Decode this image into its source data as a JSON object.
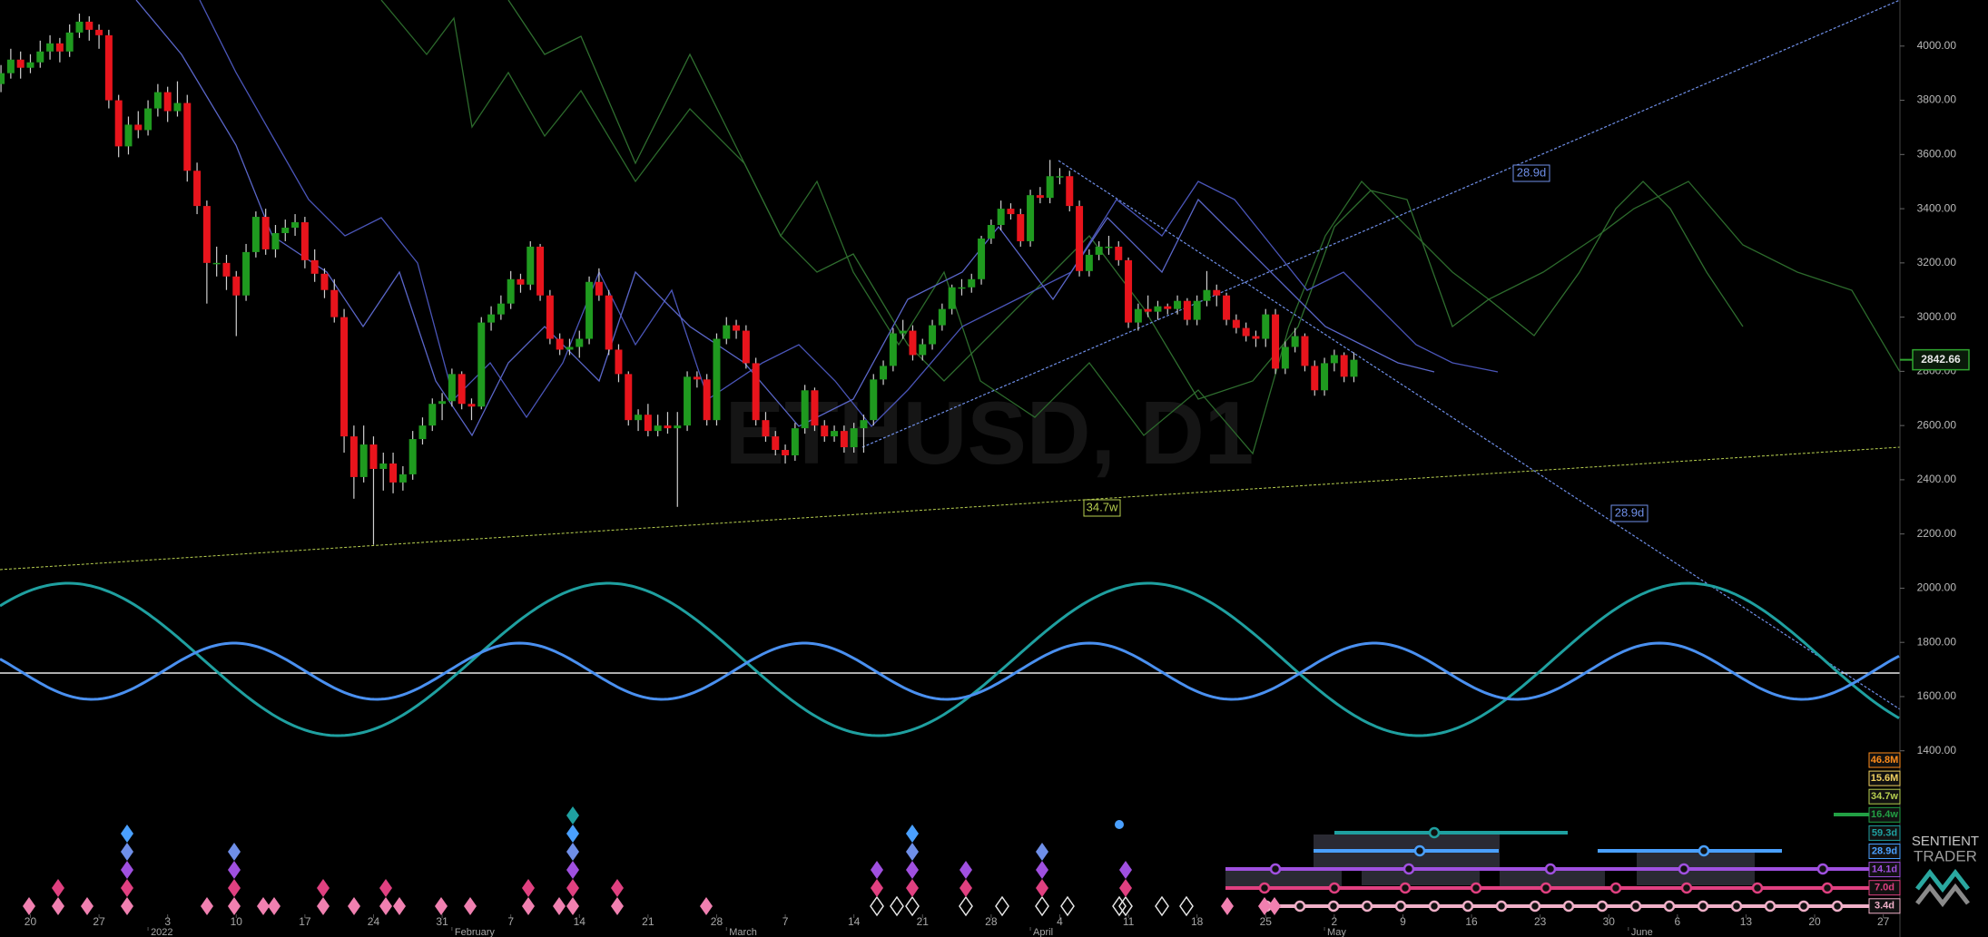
{
  "chart_data": {
    "type": "candlestick",
    "title": "ETHUSD, D1",
    "up_color": "#1f9a1f",
    "down_color": "#e8141c",
    "x": [
      -3,
      -2,
      -1,
      0,
      1,
      2,
      3,
      4,
      5,
      6,
      7,
      8,
      9,
      10,
      11,
      12,
      13,
      14,
      15,
      16,
      17,
      18,
      19,
      20,
      21,
      22,
      23,
      24,
      25,
      26,
      27,
      28,
      29,
      30,
      31,
      32,
      33,
      34,
      35,
      36,
      37,
      38,
      39,
      40,
      41,
      42,
      43,
      44,
      45,
      46,
      47,
      48,
      49,
      50,
      51,
      52,
      53,
      54,
      55,
      56,
      57,
      58,
      59,
      60,
      61,
      62,
      63,
      64,
      65,
      66,
      67,
      68,
      69,
      70,
      71,
      72,
      73,
      74,
      75,
      76,
      77,
      78,
      79,
      80,
      81,
      82,
      83,
      84,
      85,
      86,
      87,
      88,
      89,
      90,
      91,
      92,
      93,
      94,
      95,
      96,
      97,
      98,
      99,
      100,
      101,
      102,
      103,
      104,
      105,
      106,
      107,
      108,
      109,
      110,
      111,
      112,
      113,
      114,
      115,
      116,
      117,
      118,
      119,
      120,
      121,
      122,
      123,
      124,
      125,
      126,
      127,
      128,
      129,
      130,
      131,
      132,
      133,
      134,
      135
    ],
    "candles": [
      [
        3860,
        3930,
        3830,
        3900
      ],
      [
        3900,
        3990,
        3880,
        3950
      ],
      [
        3950,
        3980,
        3880,
        3920
      ],
      [
        3920,
        3970,
        3900,
        3940
      ],
      [
        3940,
        4020,
        3920,
        3980
      ],
      [
        3980,
        4040,
        3950,
        4010
      ],
      [
        4010,
        4030,
        3940,
        3980
      ],
      [
        3980,
        4080,
        3960,
        4050
      ],
      [
        4050,
        4120,
        4030,
        4090
      ],
      [
        4090,
        4110,
        4020,
        4060
      ],
      [
        4060,
        4080,
        3990,
        4040
      ],
      [
        4040,
        4060,
        3770,
        3800
      ],
      [
        3800,
        3820,
        3590,
        3630
      ],
      [
        3630,
        3740,
        3600,
        3710
      ],
      [
        3710,
        3760,
        3660,
        3690
      ],
      [
        3690,
        3800,
        3670,
        3770
      ],
      [
        3770,
        3860,
        3740,
        3830
      ],
      [
        3830,
        3850,
        3720,
        3760
      ],
      [
        3760,
        3870,
        3740,
        3790
      ],
      [
        3790,
        3820,
        3500,
        3540
      ],
      [
        3540,
        3570,
        3380,
        3410
      ],
      [
        3410,
        3430,
        3050,
        3200
      ],
      [
        3200,
        3260,
        3150,
        3200
      ],
      [
        3200,
        3230,
        3100,
        3150
      ],
      [
        3150,
        3170,
        2930,
        3080
      ],
      [
        3080,
        3270,
        3060,
        3240
      ],
      [
        3240,
        3390,
        3220,
        3370
      ],
      [
        3370,
        3400,
        3230,
        3250
      ],
      [
        3250,
        3340,
        3220,
        3310
      ],
      [
        3310,
        3360,
        3280,
        3330
      ],
      [
        3330,
        3380,
        3300,
        3350
      ],
      [
        3350,
        3370,
        3180,
        3210
      ],
      [
        3210,
        3250,
        3130,
        3160
      ],
      [
        3160,
        3180,
        3070,
        3100
      ],
      [
        3100,
        3140,
        2980,
        3000
      ],
      [
        3000,
        3030,
        2500,
        2560
      ],
      [
        2560,
        2600,
        2330,
        2410
      ],
      [
        2410,
        2600,
        2390,
        2530
      ],
      [
        2530,
        2560,
        2160,
        2440
      ],
      [
        2440,
        2500,
        2360,
        2460
      ],
      [
        2460,
        2500,
        2350,
        2390
      ],
      [
        2390,
        2450,
        2360,
        2420
      ],
      [
        2420,
        2580,
        2400,
        2550
      ],
      [
        2550,
        2630,
        2530,
        2600
      ],
      [
        2600,
        2700,
        2580,
        2680
      ],
      [
        2680,
        2720,
        2620,
        2690
      ],
      [
        2690,
        2810,
        2670,
        2790
      ],
      [
        2790,
        2800,
        2660,
        2680
      ],
      [
        2680,
        2700,
        2620,
        2670
      ],
      [
        2670,
        3000,
        2660,
        2980
      ],
      [
        2980,
        3040,
        2950,
        3010
      ],
      [
        3010,
        3080,
        2990,
        3050
      ],
      [
        3050,
        3170,
        3030,
        3140
      ],
      [
        3140,
        3160,
        3090,
        3120
      ],
      [
        3120,
        3280,
        3100,
        3260
      ],
      [
        3260,
        3270,
        3060,
        3080
      ],
      [
        3080,
        3100,
        2900,
        2920
      ],
      [
        2920,
        2940,
        2860,
        2880
      ],
      [
        2880,
        2920,
        2860,
        2890
      ],
      [
        2890,
        2950,
        2850,
        2920
      ],
      [
        2920,
        3150,
        2900,
        3130
      ],
      [
        3130,
        3180,
        3060,
        3080
      ],
      [
        3080,
        3100,
        2860,
        2880
      ],
      [
        2880,
        2900,
        2760,
        2790
      ],
      [
        2790,
        2800,
        2600,
        2620
      ],
      [
        2620,
        2660,
        2580,
        2640
      ],
      [
        2640,
        2680,
        2560,
        2580
      ],
      [
        2580,
        2640,
        2560,
        2600
      ],
      [
        2600,
        2650,
        2570,
        2590
      ],
      [
        2590,
        2650,
        2300,
        2600
      ],
      [
        2600,
        2800,
        2580,
        2780
      ],
      [
        2780,
        2800,
        2740,
        2770
      ],
      [
        2770,
        2790,
        2600,
        2620
      ],
      [
        2620,
        2940,
        2600,
        2920
      ],
      [
        2920,
        3000,
        2900,
        2970
      ],
      [
        2970,
        2990,
        2920,
        2950
      ],
      [
        2950,
        2970,
        2810,
        2830
      ],
      [
        2830,
        2850,
        2600,
        2620
      ],
      [
        2620,
        2650,
        2540,
        2560
      ],
      [
        2560,
        2580,
        2490,
        2510
      ],
      [
        2510,
        2530,
        2460,
        2490
      ],
      [
        2490,
        2610,
        2470,
        2590
      ],
      [
        2590,
        2750,
        2570,
        2730
      ],
      [
        2730,
        2740,
        2580,
        2600
      ],
      [
        2600,
        2620,
        2540,
        2560
      ],
      [
        2560,
        2600,
        2540,
        2580
      ],
      [
        2580,
        2600,
        2500,
        2520
      ],
      [
        2520,
        2610,
        2500,
        2590
      ],
      [
        2590,
        2640,
        2500,
        2620
      ],
      [
        2620,
        2790,
        2600,
        2770
      ],
      [
        2770,
        2840,
        2750,
        2820
      ],
      [
        2820,
        2960,
        2800,
        2940
      ],
      [
        2940,
        2990,
        2920,
        2950
      ],
      [
        2950,
        2970,
        2840,
        2860
      ],
      [
        2860,
        2920,
        2840,
        2900
      ],
      [
        2900,
        2990,
        2880,
        2970
      ],
      [
        2970,
        3050,
        2950,
        3030
      ],
      [
        3030,
        3120,
        3010,
        3110
      ],
      [
        3110,
        3140,
        3080,
        3110
      ],
      [
        3110,
        3160,
        3090,
        3140
      ],
      [
        3140,
        3300,
        3120,
        3290
      ],
      [
        3290,
        3360,
        3270,
        3340
      ],
      [
        3340,
        3430,
        3320,
        3400
      ],
      [
        3400,
        3420,
        3360,
        3380
      ],
      [
        3380,
        3400,
        3260,
        3280
      ],
      [
        3280,
        3470,
        3260,
        3450
      ],
      [
        3450,
        3480,
        3420,
        3440
      ],
      [
        3440,
        3580,
        3420,
        3520
      ],
      [
        3520,
        3550,
        3490,
        3520
      ],
      [
        3520,
        3540,
        3390,
        3410
      ],
      [
        3410,
        3430,
        3150,
        3170
      ],
      [
        3170,
        3250,
        3150,
        3230
      ],
      [
        3230,
        3280,
        3210,
        3260
      ],
      [
        3260,
        3300,
        3230,
        3260
      ],
      [
        3260,
        3280,
        3190,
        3210
      ],
      [
        3210,
        3220,
        2960,
        2980
      ],
      [
        2980,
        3050,
        2950,
        3030
      ],
      [
        3030,
        3080,
        3000,
        3020
      ],
      [
        3020,
        3060,
        2990,
        3040
      ],
      [
        3040,
        3050,
        3010,
        3030
      ],
      [
        3030,
        3080,
        3010,
        3060
      ],
      [
        3060,
        3070,
        2970,
        2990
      ],
      [
        2990,
        3080,
        2970,
        3060
      ],
      [
        3060,
        3170,
        3040,
        3100
      ],
      [
        3100,
        3120,
        3040,
        3080
      ],
      [
        3080,
        3090,
        2970,
        2990
      ],
      [
        2990,
        3010,
        2940,
        2960
      ],
      [
        2960,
        2980,
        2910,
        2930
      ],
      [
        2930,
        2950,
        2890,
        2920
      ],
      [
        2920,
        3030,
        2890,
        3010
      ],
      [
        3010,
        3030,
        2790,
        2810
      ],
      [
        2810,
        2910,
        2790,
        2890
      ],
      [
        2890,
        2960,
        2870,
        2930
      ],
      [
        2930,
        2940,
        2800,
        2820
      ],
      [
        2820,
        2840,
        2710,
        2730
      ],
      [
        2730,
        2850,
        2710,
        2830
      ],
      [
        2830,
        2880,
        2800,
        2860
      ],
      [
        2860,
        2870,
        2760,
        2780
      ],
      [
        2780,
        2870,
        2760,
        2842.66
      ]
    ],
    "last_price": 2842.66,
    "xlim": [
      -3.1,
      190.7
    ],
    "ylim": [
      790,
      4170
    ],
    "yticks": [
      {
        "value": 1400,
        "label": "1400.00"
      },
      {
        "value": 1600,
        "label": "1600.00"
      },
      {
        "value": 1800,
        "label": "1800.00"
      },
      {
        "value": 2000,
        "label": "2000.00"
      },
      {
        "value": 2200,
        "label": "2200.00"
      },
      {
        "value": 2400,
        "label": "2400.00"
      },
      {
        "value": 2600,
        "label": "2600.00"
      },
      {
        "value": 2800,
        "label": "2800.00"
      },
      {
        "value": 3000,
        "label": "3000.00"
      },
      {
        "value": 3200,
        "label": "3200.00"
      },
      {
        "value": 3400,
        "label": "3400.00"
      },
      {
        "value": 3600,
        "label": "3600.00"
      },
      {
        "value": 3800,
        "label": "3800.00"
      },
      {
        "value": 4000,
        "label": "4000.00"
      }
    ],
    "xticks": [
      {
        "value": 0,
        "label": "20"
      },
      {
        "value": 7,
        "label": "27"
      },
      {
        "value": 14,
        "label": "3"
      },
      {
        "value": 21,
        "label": "10"
      },
      {
        "value": 28,
        "label": "17"
      },
      {
        "value": 35,
        "label": "24"
      },
      {
        "value": 42,
        "label": "31"
      },
      {
        "value": 49,
        "label": "7"
      },
      {
        "value": 56,
        "label": "14"
      },
      {
        "value": 63,
        "label": "21"
      },
      {
        "value": 70,
        "label": "28"
      },
      {
        "value": 77,
        "label": "7"
      },
      {
        "value": 84,
        "label": "14"
      },
      {
        "value": 91,
        "label": "21"
      },
      {
        "value": 98,
        "label": "28"
      },
      {
        "value": 105,
        "label": "4"
      },
      {
        "value": 112,
        "label": "11"
      },
      {
        "value": 119,
        "label": "18"
      },
      {
        "value": 126,
        "label": "25"
      },
      {
        "value": 133,
        "label": "2"
      },
      {
        "value": 140,
        "label": "9"
      },
      {
        "value": 147,
        "label": "16"
      },
      {
        "value": 154,
        "label": "23"
      },
      {
        "value": 161,
        "label": "30"
      },
      {
        "value": 168,
        "label": "6"
      },
      {
        "value": 175,
        "label": "13"
      },
      {
        "value": 182,
        "label": "20"
      },
      {
        "value": 189,
        "label": "27"
      }
    ],
    "month_ticks": [
      {
        "value": 12,
        "label": "2022"
      },
      {
        "value": 43,
        "label": "February"
      },
      {
        "value": 71,
        "label": "March"
      },
      {
        "value": 102,
        "label": "April"
      },
      {
        "value": 132,
        "label": "May"
      },
      {
        "value": 163,
        "label": "June"
      }
    ],
    "annotations": [
      {
        "text": "28.9d",
        "color": "#6f8fe8"
      },
      {
        "text": "28.9d",
        "color": "#6f8fe8"
      },
      {
        "text": "34.7w",
        "color": "#b8d050"
      }
    ]
  },
  "cycle_legend": [
    {
      "label": "46.8M",
      "color": "#ff8c1a"
    },
    {
      "label": "15.6M",
      "color": "#f0d060"
    },
    {
      "label": "34.7w",
      "color": "#b8d050"
    },
    {
      "label": "16.4w",
      "color": "#22a044"
    },
    {
      "label": "59.3d",
      "color": "#1fa0a0"
    },
    {
      "label": "28.9d",
      "color": "#4aa0ff"
    },
    {
      "label": "14.1d",
      "color": "#a050e0"
    },
    {
      "label": "7.0d",
      "color": "#e04080"
    },
    {
      "label": "3.4d",
      "color": "#f0b0c8"
    }
  ],
  "brand": [
    "SENTIENT",
    "TRADER"
  ]
}
